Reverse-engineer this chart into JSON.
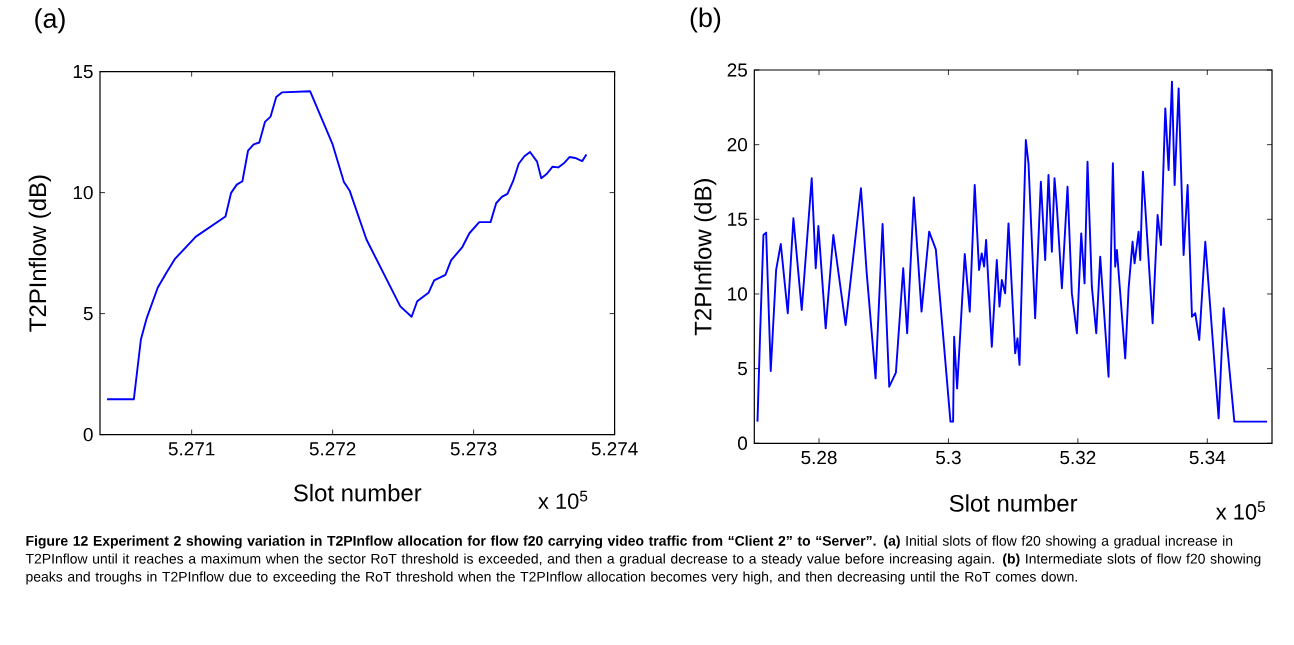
{
  "chart_data": [
    {
      "type": "line",
      "title": "(a)",
      "xlabel": "Slot number",
      "ylabel": "T2PInflow (dB)",
      "color": "#0000ff",
      "x": [
        5.2704,
        5.27059,
        5.27064,
        5.27068,
        5.27076,
        5.27082,
        5.27088,
        5.27103,
        5.27124,
        5.27128,
        5.27132,
        5.27136,
        5.2714,
        5.27144,
        5.27148,
        5.27152,
        5.27156,
        5.2716,
        5.27164,
        5.27184,
        5.272,
        5.27208,
        5.27212,
        5.27224,
        5.27248,
        5.27256,
        5.2726,
        5.27268,
        5.27272,
        5.2728,
        5.27284,
        5.27292,
        5.27297,
        5.27304,
        5.27312,
        5.27316,
        5.2732,
        5.27324,
        5.27328,
        5.27332,
        5.27336,
        5.2734,
        5.27345,
        5.27348,
        5.27352,
        5.27356,
        5.2736,
        5.27364,
        5.27368,
        5.27372,
        5.27377,
        5.2738
      ],
      "values": [
        1.46,
        1.46,
        3.93,
        4.79,
        6.08,
        6.68,
        7.25,
        8.18,
        9.01,
        9.99,
        10.33,
        10.47,
        11.73,
        11.99,
        12.07,
        12.92,
        13.14,
        13.95,
        14.14,
        14.19,
        11.99,
        10.44,
        10.09,
        8.06,
        5.3,
        4.87,
        5.51,
        5.86,
        6.37,
        6.6,
        7.2,
        7.75,
        8.32,
        8.78,
        8.78,
        9.56,
        9.82,
        9.95,
        10.47,
        11.19,
        11.5,
        11.68,
        11.28,
        10.59,
        10.78,
        11.07,
        11.04,
        11.21,
        11.47,
        11.43,
        11.3,
        11.57
      ],
      "xlim": [
        5.27035,
        5.274
      ],
      "ylim": [
        0,
        15
      ],
      "xticks": [
        5.271,
        5.272,
        5.273,
        5.274
      ],
      "yticks": [
        0,
        5,
        10,
        15
      ],
      "annotations": [
        "x 10$^{5}$"
      ]
    },
    {
      "type": "line",
      "title": "(b)",
      "xlabel": "Slot number",
      "ylabel": "T2PInflow (dB)",
      "color": "#0000ff",
      "x": [
        5.27049,
        5.2709,
        5.27141,
        5.27183,
        5.27254,
        5.27337,
        5.27409,
        5.27517,
        5.27604,
        5.27733,
        5.27887,
        5.27949,
        5.2799,
        5.28103,
        5.28221,
        5.28411,
        5.28648,
        5.28735,
        5.28874,
        5.28982,
        5.29085,
        5.29188,
        5.29301,
        5.29362,
        5.29465,
        5.29584,
        5.29702,
        5.29805,
        5.30031,
        5.30072,
        5.30088,
        5.30134,
        5.30252,
        5.30329,
        5.30406,
        5.30473,
        5.30515,
        5.30551,
        5.30582,
        5.3067,
        5.30747,
        5.30789,
        5.30825,
        5.30876,
        5.30928,
        5.31031,
        5.31067,
        5.31098,
        5.31196,
        5.31237,
        5.3134,
        5.31428,
        5.31495,
        5.31546,
        5.31598,
        5.31639,
        5.31675,
        5.31753,
        5.3184,
        5.31907,
        5.31985,
        5.32052,
        5.32103,
        5.32149,
        5.32216,
        5.32284,
        5.32345,
        5.32474,
        5.32541,
        5.32577,
        5.32603,
        5.32732,
        5.32784,
        5.32845,
        5.32876,
        5.32938,
        5.32964,
        5.33005,
        5.33041,
        5.33067,
        5.33155,
        5.33232,
        5.33284,
        5.33351,
        5.33402,
        5.33454,
        5.33495,
        5.33557,
        5.33634,
        5.33696,
        5.33763,
        5.33814,
        5.33876,
        5.33969,
        5.34175,
        5.34253,
        5.34418,
        5.34923
      ],
      "values": [
        1.45,
        7.37,
        13.95,
        14.11,
        4.84,
        11.61,
        13.35,
        8.71,
        15.07,
        8.93,
        17.75,
        11.72,
        14.55,
        7.7,
        13.95,
        7.92,
        17.08,
        11.5,
        4.35,
        14.69,
        3.79,
        4.73,
        11.72,
        7.37,
        16.47,
        8.82,
        14.17,
        12.99,
        1.45,
        1.45,
        7.14,
        3.68,
        12.68,
        8.82,
        17.3,
        11.61,
        12.72,
        11.83,
        13.62,
        6.47,
        12.28,
        9.15,
        10.94,
        10.04,
        14.73,
        6.03,
        7.03,
        5.25,
        20.31,
        18.75,
        8.37,
        17.52,
        12.28,
        17.97,
        12.83,
        17.75,
        15.85,
        10.38,
        17.19,
        10.04,
        7.37,
        14.06,
        10.71,
        18.86,
        10.49,
        7.37,
        12.5,
        4.46,
        18.75,
        11.83,
        12.95,
        5.69,
        10.38,
        13.5,
        12.05,
        14.17,
        12.28,
        18.19,
        15.85,
        14.06,
        8.04,
        15.29,
        13.28,
        22.43,
        18.3,
        24.22,
        17.3,
        23.77,
        12.61,
        17.3,
        8.48,
        8.71,
        6.92,
        13.5,
        1.67,
        9.04,
        1.45,
        1.45
      ],
      "xlim": [
        5.27,
        5.35
      ],
      "ylim": [
        0,
        25
      ],
      "xticks": [
        5.28,
        5.3,
        5.32,
        5.34
      ],
      "yticks": [
        0,
        5,
        10,
        15,
        20,
        25
      ],
      "annotations": [
        "x 10$^{5}$",
        "**Figure 12 Experiment 2 showing variation in T2PInflow allocation for flow f20 carrying video traffic from “Client 2” to “Server”. (a)** Initial slots of flow f20 showing a gradual increase in T2PInflow until it reaches a maximum when the sector RoT threshold is exceeded, and then a gradual decrease to a steady value before increasing again. **(b)** Intermediate slots of flow f20 showing peaks and troughs in T2PInflow due to exceeding the RoT threshold when the T2PInflow allocation becomes very high, and then decreasing until the RoT comes down."
      ]
    }
  ]
}
